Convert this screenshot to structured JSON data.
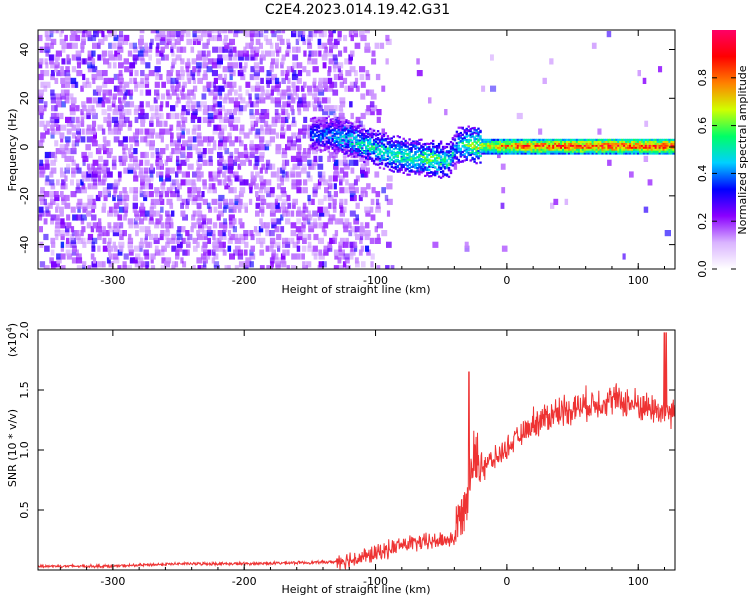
{
  "figure": {
    "title": "C2E4.2023.014.19.42.G31"
  },
  "chart_data": [
    {
      "type": "heatmap",
      "title": "C2E4.2023.014.19.42.G31",
      "xlabel": "Height of straight line (km)",
      "ylabel": "Frequency (Hz)",
      "xlim": [
        -357,
        128
      ],
      "ylim": [
        -50,
        48
      ],
      "xticks": [
        -300,
        -200,
        -100,
        0,
        100
      ],
      "yticks": [
        -40,
        -20,
        0,
        20,
        40
      ],
      "colorbar": {
        "label": "Normalized spectral amplitude",
        "range": [
          0.0,
          1.0
        ],
        "ticks": [
          0.0,
          0.2,
          0.4,
          0.6,
          0.8
        ],
        "tick_labels": [
          "0.0",
          "0.2",
          "0.4",
          "0.6",
          "0.8"
        ],
        "colors": [
          "#ffffff",
          "#d9b3ff",
          "#8a00ff",
          "#0000ff",
          "#00d0ff",
          "#00ff66",
          "#d0ff00",
          "#ff8000",
          "#ff0000",
          "#ff0066"
        ]
      },
      "ridge": {
        "x": [
          -140,
          -120,
          -100,
          -80,
          -60,
          -45,
          -40,
          -30,
          -20,
          0,
          50,
          128
        ],
        "y": [
          5,
          3,
          -1,
          -4,
          -5,
          -6,
          0,
          1,
          0,
          0,
          0,
          0
        ],
        "peak_amplitude": [
          0.4,
          0.5,
          0.55,
          0.55,
          0.6,
          0.55,
          0.45,
          0.6,
          0.7,
          0.85,
          0.9,
          0.9
        ]
      }
    },
    {
      "type": "line",
      "xlabel": "Height of straight line (km)",
      "ylabel": "SNR (10 * v/v)",
      "yscale_label": "(x10",
      "yscale_exp": "4",
      "yscale_close": ")",
      "xlim": [
        -357,
        128
      ],
      "ylim": [
        0,
        2.0
      ],
      "xticks": [
        -300,
        -200,
        -100,
        0,
        100
      ],
      "yticks": [
        0.5,
        1.0,
        1.5,
        2.0
      ],
      "ytick_labels": [
        "0.5",
        "1.0",
        "1.5",
        "2.0"
      ],
      "series": [
        {
          "color": "#ee3333",
          "x": [
            -357,
            -300,
            -250,
            -200,
            -150,
            -120,
            -100,
            -80,
            -60,
            -40,
            -30,
            -25,
            -20,
            -10,
            0,
            20,
            40,
            60,
            80,
            100,
            120,
            128
          ],
          "y": [
            0.03,
            0.03,
            0.05,
            0.05,
            0.06,
            0.07,
            0.12,
            0.2,
            0.22,
            0.25,
            0.6,
            0.9,
            0.85,
            0.9,
            1.0,
            1.2,
            1.3,
            1.35,
            1.4,
            1.35,
            1.3,
            1.3
          ]
        }
      ]
    }
  ]
}
